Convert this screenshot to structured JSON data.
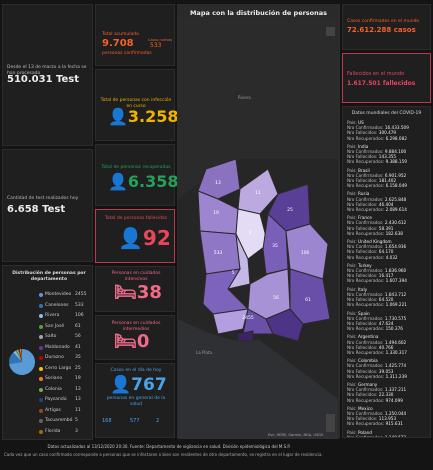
{
  "tests_total": {
    "label": "Desde el 13 de marzo a la fecha se han procesado",
    "value": "510.031 Test"
  },
  "tests_today": {
    "label": "Cantidad de test realizados hoy",
    "value": "6.658 Test"
  },
  "confirmed": {
    "label": "Total acumulado",
    "value": "9.708",
    "sub": "personas confirmadas",
    "side_label": "Casos nuevos",
    "side_value": "533"
  },
  "active": {
    "label": "Total de personas con infección en curso",
    "value": "3.258"
  },
  "recovered": {
    "label": "Total de personas recuperadas",
    "value": "6.358"
  },
  "deceased": {
    "label": "Total de personas fallecidas",
    "value": "92"
  },
  "icu": {
    "label": "Personas en cuidados intensivos",
    "value": "38"
  },
  "intermediate": {
    "label": "Personas en cuidados intermedios",
    "value": "0"
  },
  "today": {
    "label": "Casos en el día de hoy",
    "value": "767",
    "sub": "personas en general de la salud"
  },
  "bottom_stats": [
    "168",
    "577",
    "2"
  ],
  "map": {
    "title": "Mapa con la distribución de personas",
    "labels": [
      "13",
      "11",
      "25",
      "19",
      "3",
      "35",
      "106",
      "533",
      "2455",
      "61",
      "56",
      "5"
    ],
    "city_labels": [
      "Rivera",
      "La Plata"
    ],
    "attribution": "Esri, HERE, Garmin, NGA, USGS"
  },
  "world_confirmed": {
    "label": "Casos confirmados en el mundo",
    "value": "72.612.288 casos"
  },
  "world_deceased": {
    "label": "Fallecidos en el mundo",
    "value": "1.617.501 fallecidos"
  },
  "world_list": {
    "title": "Datos mundiales del COVID-19",
    "field_labels": {
      "country": "País:",
      "confirmed": "Nro Confirmados:",
      "deceased": "Nro Fallecidos:",
      "recovered": "Nro Recuperados:"
    },
    "countries": [
      {
        "name": "US",
        "confirmed": "16.433.509",
        "deceased": "300.479",
        "recovered": "6.298.082"
      },
      {
        "name": "India",
        "confirmed": "9.884.100",
        "deceased": "143.355",
        "recovered": "9.388.159"
      },
      {
        "name": "Brasil",
        "confirmed": "6.901.952",
        "deceased": "181.402",
        "recovered": "6.158.049"
      },
      {
        "name": "Rusia",
        "confirmed": "2.625.848",
        "deceased": "46.404",
        "recovered": "2.089.614"
      },
      {
        "name": "France",
        "confirmed": "2.430.612",
        "deceased": "58.391",
        "recovered": "182.638"
      },
      {
        "name": "United Kingdom",
        "confirmed": "1.654.936",
        "deceased": "64.170",
        "recovered": "4.032"
      },
      {
        "name": "Turkey",
        "confirmed": "1.836.960",
        "deceased": "16.417",
        "recovered": "1.607.394"
      },
      {
        "name": "Italy",
        "confirmed": "1.843.712",
        "deceased": "64.520",
        "recovered": "1.069.221"
      },
      {
        "name": "Spain",
        "confirmed": "1.730.575",
        "deceased": "47.624",
        "recovered": "150.376"
      },
      {
        "name": "Argentina",
        "confirmed": "1.494.602",
        "deceased": "40.766",
        "recovered": "1.330.317"
      },
      {
        "name": "Colombia",
        "confirmed": "1.425.774",
        "deceased": "39.053",
        "recovered": "1.311.239"
      },
      {
        "name": "Germany",
        "confirmed": "1.337.211",
        "deceased": "22.330",
        "recovered": "974.099"
      },
      {
        "name": "Mexico",
        "confirmed": "1.250.044",
        "deceased": "113.953",
        "recovered": "915.631"
      },
      {
        "name": "Poland",
        "confirmed": "1.140.572",
        "deceased": "22.864",
        "recovered": "867.122"
      }
    ]
  },
  "departments": {
    "title": "Distribución de personas por departamento",
    "items": [
      {
        "name": "Montevideo",
        "value": 2455,
        "color": "#5b9bd5"
      },
      {
        "name": "Canelones",
        "value": 533,
        "color": "#2e75b6"
      },
      {
        "name": "Rivera",
        "value": 106,
        "color": "#8fbce6"
      },
      {
        "name": "San José",
        "value": 61,
        "color": "#4ea72e"
      },
      {
        "name": "Salto",
        "value": 56,
        "color": "#a5a5a5"
      },
      {
        "name": "Maldonado",
        "value": 41,
        "color": "#7030a0"
      },
      {
        "name": "Durazno",
        "value": 35,
        "color": "#c00000"
      },
      {
        "name": "Cerro Largo",
        "value": 25,
        "color": "#ffc000"
      },
      {
        "name": "Soriano",
        "value": 19,
        "color": "#ed7d31"
      },
      {
        "name": "Colonia",
        "value": 13,
        "color": "#70ad47"
      },
      {
        "name": "Paysandú",
        "value": 13,
        "color": "#264478"
      },
      {
        "name": "Artigas",
        "value": 11,
        "color": "#9e480e"
      },
      {
        "name": "Tacuarembó",
        "value": 5,
        "color": "#636363"
      },
      {
        "name": "Florida",
        "value": 3,
        "color": "#997300"
      }
    ]
  },
  "footer": [
    "Datos actualizados al 13/12/2020 20:30. Fuente: Departamento de vigilancia en salud. División epidemiológica del M.S.P.",
    "Cada vez que un caso confirmado corresponde a personas que se infectaron o bien son residentes de otro departamento, se registra en el lugar de residencia."
  ]
}
